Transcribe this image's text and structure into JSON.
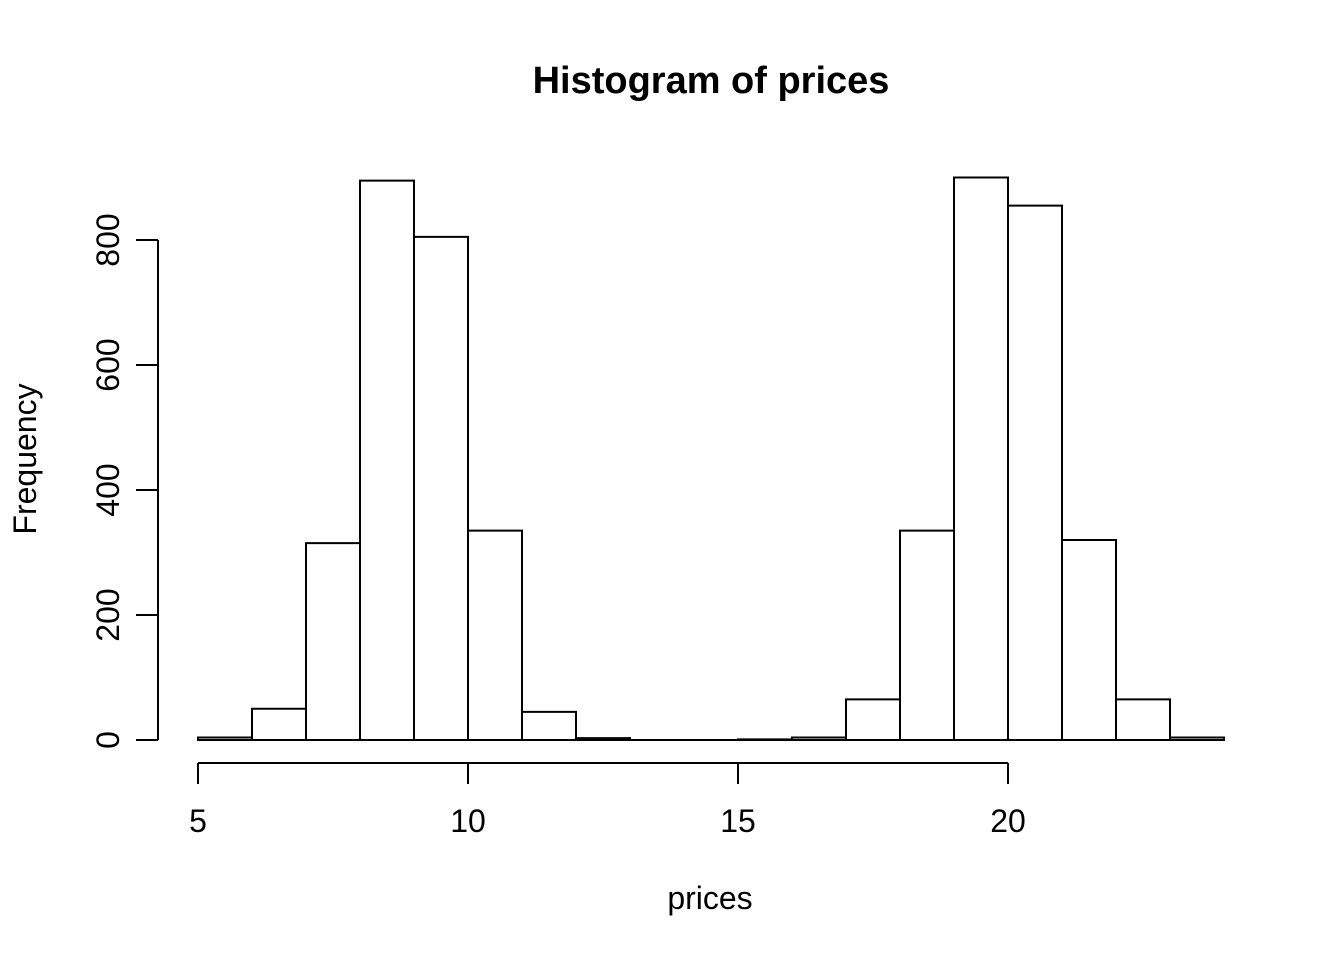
{
  "figure": {
    "background": "#ffffff",
    "foreground": "#000000"
  },
  "chart_data": {
    "type": "bar",
    "subtype": "histogram",
    "title": "Histogram of prices",
    "xlabel": "prices",
    "ylabel": "Frequency",
    "bin_width": 1,
    "bin_edges": [
      5,
      6,
      7,
      8,
      9,
      10,
      11,
      12,
      13,
      14,
      15,
      16,
      17,
      18,
      19,
      20,
      21,
      22,
      23,
      24
    ],
    "counts": [
      4,
      50,
      315,
      895,
      805,
      335,
      45,
      3,
      0,
      0,
      1,
      4,
      65,
      335,
      900,
      855,
      320,
      65,
      4
    ],
    "x_ticks": [
      5,
      10,
      15,
      20
    ],
    "y_ticks": [
      0,
      200,
      400,
      600,
      800
    ],
    "xlim": [
      5,
      24
    ],
    "ylim": [
      0,
      900
    ],
    "grid": false,
    "legend": false,
    "bar_fill": "#ffffff",
    "bar_stroke": "#000000",
    "axis_color": "#000000"
  }
}
